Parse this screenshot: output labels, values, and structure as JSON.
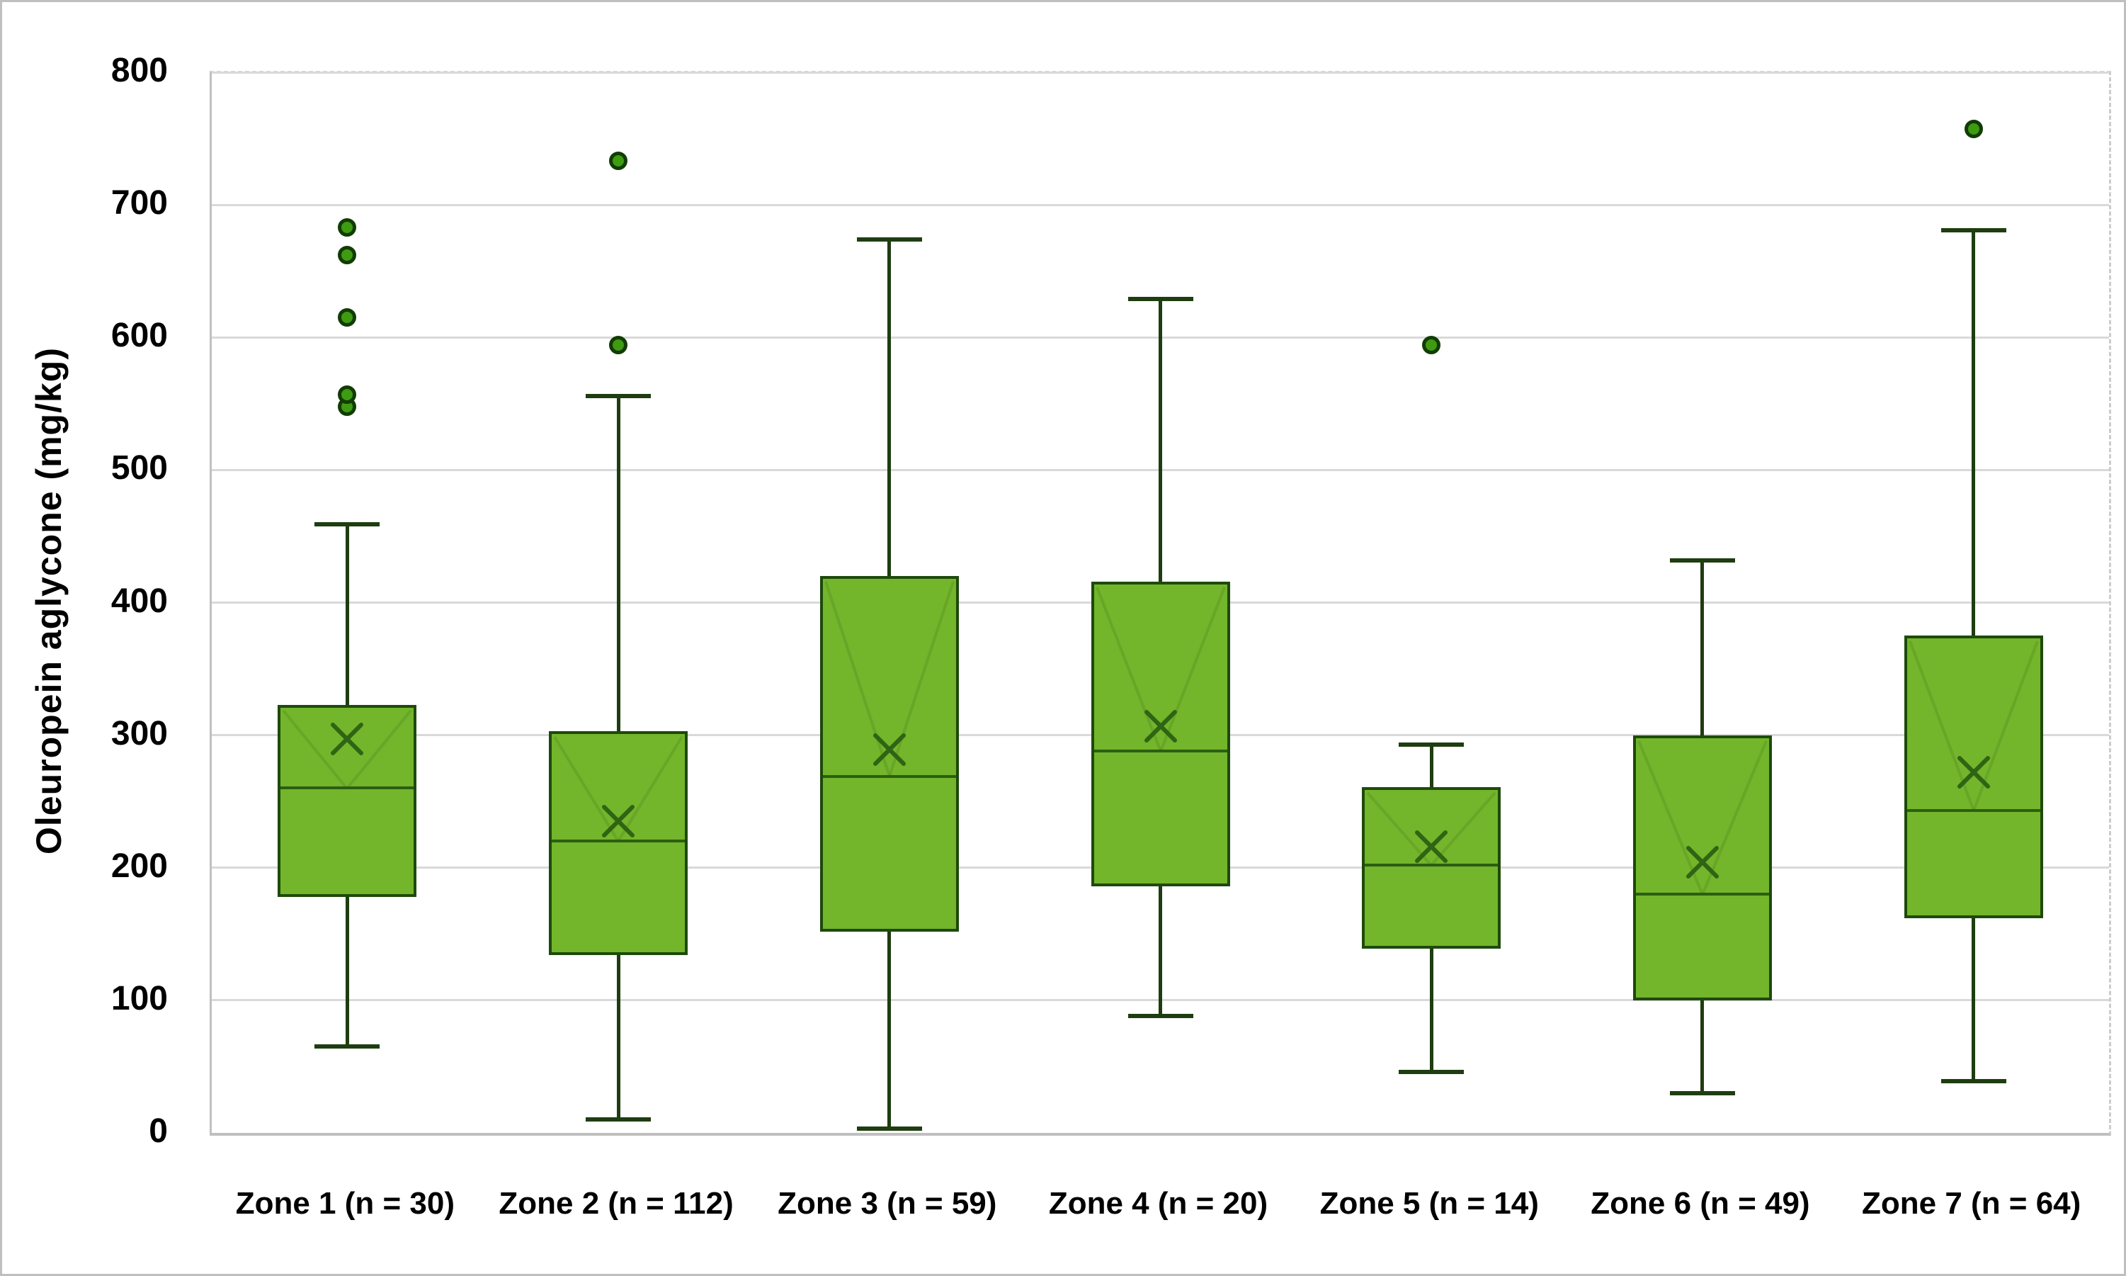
{
  "chart_data": {
    "type": "boxplot",
    "title": "",
    "xlabel": "",
    "ylabel": "Oleuropein aglycone (mg/kg)",
    "ylim": [
      0,
      800
    ],
    "yticks": [
      0,
      100,
      200,
      300,
      400,
      500,
      600,
      700,
      800
    ],
    "grid": "horizontal-light-gray",
    "legend": "none",
    "categories": [
      "Zone 1 (n = 30)",
      "Zone 2 (n = 112)",
      "Zone 3 (n = 59)",
      "Zone 4 (n = 20)",
      "Zone 5 (n = 14)",
      "Zone 6 (n = 49)",
      "Zone 7 (n = 64)"
    ],
    "series": [
      {
        "label": "Zone 1 (n = 30)",
        "n": 30,
        "whisker_low": 65,
        "q1": 178,
        "median": 260,
        "q3": 323,
        "whisker_high": 459,
        "mean": 297,
        "outliers": [
          548,
          557,
          615,
          662,
          683
        ]
      },
      {
        "label": "Zone 2 (n = 112)",
        "n": 112,
        "whisker_low": 10,
        "q1": 134,
        "median": 220,
        "q3": 303,
        "whisker_high": 556,
        "mean": 235,
        "outliers": [
          594,
          733
        ]
      },
      {
        "label": "Zone 3 (n = 59)",
        "n": 59,
        "whisker_low": 3,
        "q1": 152,
        "median": 269,
        "q3": 420,
        "whisker_high": 674,
        "mean": 289,
        "outliers": []
      },
      {
        "label": "Zone 4 (n = 20)",
        "n": 20,
        "whisker_low": 88,
        "q1": 186,
        "median": 288,
        "q3": 416,
        "whisker_high": 629,
        "mean": 307,
        "outliers": []
      },
      {
        "label": "Zone 5 (n = 14)",
        "n": 14,
        "whisker_low": 46,
        "q1": 139,
        "median": 202,
        "q3": 261,
        "whisker_high": 293,
        "mean": 216,
        "outliers": [
          594
        ]
      },
      {
        "label": "Zone 6 (n = 49)",
        "n": 49,
        "whisker_low": 30,
        "q1": 100,
        "median": 180,
        "q3": 300,
        "whisker_high": 432,
        "mean": 204,
        "outliers": []
      },
      {
        "label": "Zone 7 (n = 64)",
        "n": 64,
        "whisker_low": 39,
        "q1": 162,
        "median": 243,
        "q3": 375,
        "whisker_high": 681,
        "mean": 272,
        "outliers": [
          757
        ]
      }
    ],
    "colors": {
      "box_fill": "#73B52B",
      "box_border": "#1E4A0C",
      "median_line": "#2C5E12",
      "whisker": "#1E3D10",
      "mean_marker": "#2F6414",
      "outlier_fill": "#3E9B12",
      "outlier_border": "#123C05",
      "gridline": "#D9D9D9",
      "axis_line": "#C0C0C0",
      "text": "#000000",
      "figure_border": "#BFBFBF",
      "background": "#FFFFFF"
    }
  }
}
